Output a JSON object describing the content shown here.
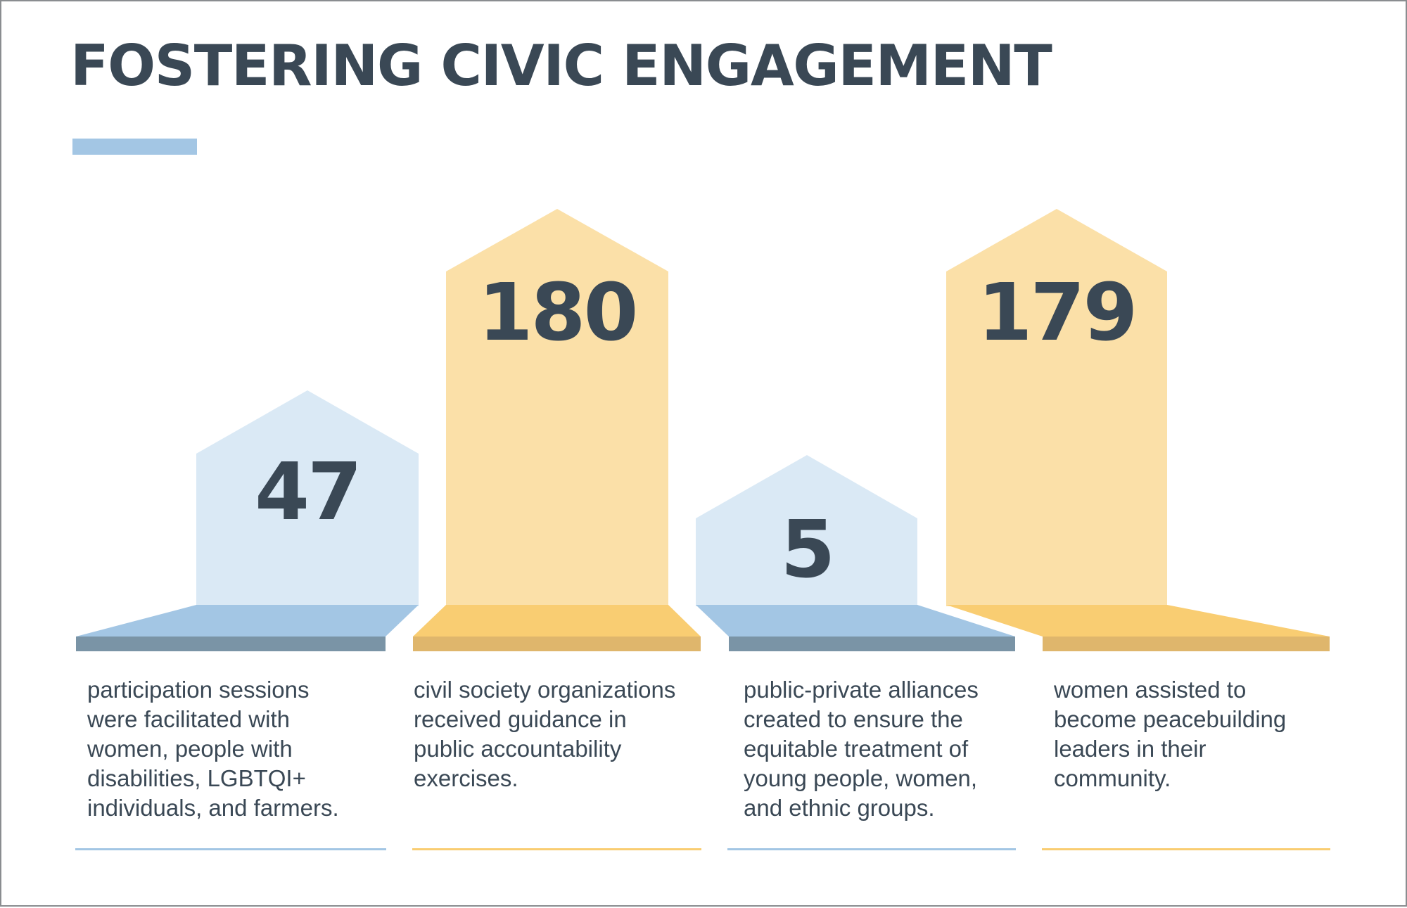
{
  "title": "FOSTERING CIVIC ENGAGEMENT",
  "colors": {
    "blue_light": "#dae9f5",
    "blue_mid": "#a3c6e4",
    "blue_dark": "#7a94a6",
    "yellow_light": "#fbe0a8",
    "yellow_mid": "#f9cd72",
    "yellow_dark": "#dfb66c",
    "text": "#3a4855"
  },
  "stats": [
    {
      "value": "47",
      "description": "participation sessions\nwere facilitated with\nwomen, people with\ndisabilities, LGBTQI+\nindividuals, and farmers."
    },
    {
      "value": "180",
      "description": "civil society organizations\nreceived guidance in\npublic accountability\nexercises."
    },
    {
      "value": "5",
      "description": "public-private alliances\ncreated to ensure the\nequitable treatment of\nyoung people, women,\nand ethnic groups."
    },
    {
      "value": "179",
      "description": "women assisted to\nbecome peacebuilding\nleaders in their\ncommunity."
    }
  ]
}
